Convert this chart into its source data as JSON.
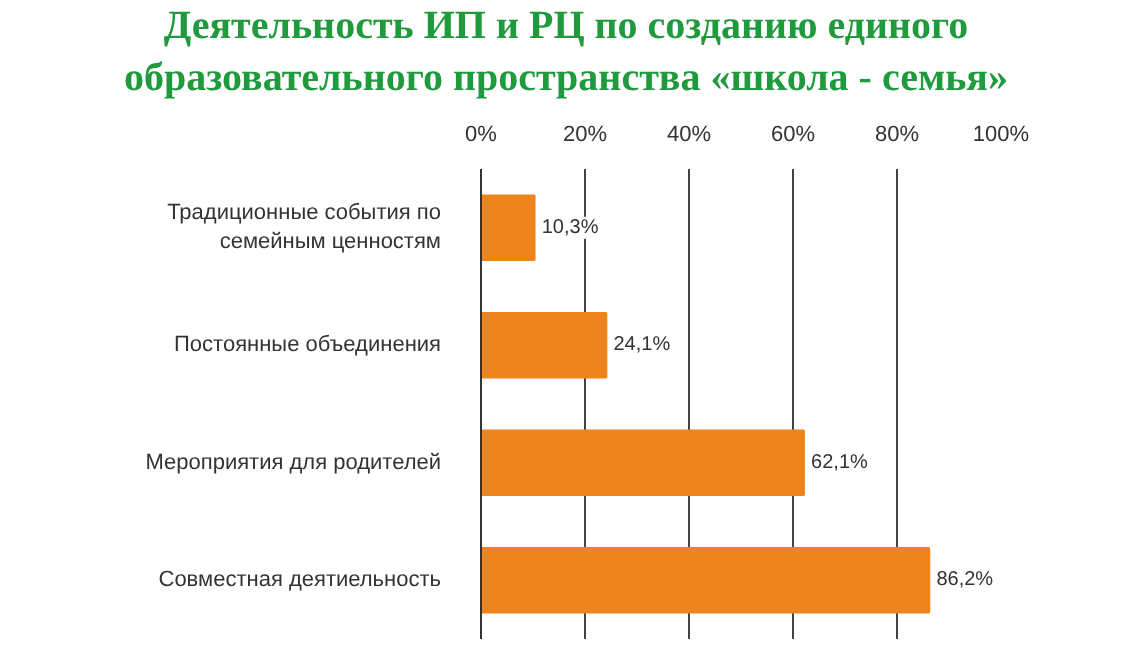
{
  "chart_data": {
    "type": "bar",
    "orientation": "horizontal",
    "title": "Деятельность ИП и РЦ по созданию единого образовательного пространства «школа - семья»",
    "categories": [
      "Традиционные события по семейным ценностям",
      "Постоянные объединения",
      "Мероприятия для родителей",
      "Совместная деятиельность"
    ],
    "values": [
      10.3,
      24.1,
      62.1,
      86.2
    ],
    "value_labels": [
      "10,3%",
      "24,1%",
      "62,1%",
      "86,2%"
    ],
    "color": "#f0841c",
    "xlim": [
      0,
      100
    ],
    "xticks": [
      {
        "value": 0,
        "label": "0%"
      },
      {
        "value": 20,
        "label": "20%"
      },
      {
        "value": 40,
        "label": "40%"
      },
      {
        "value": 60,
        "label": "60%"
      },
      {
        "value": 80,
        "label": "80%"
      },
      {
        "value": 100,
        "label": "100%"
      }
    ],
    "grid": "x"
  }
}
